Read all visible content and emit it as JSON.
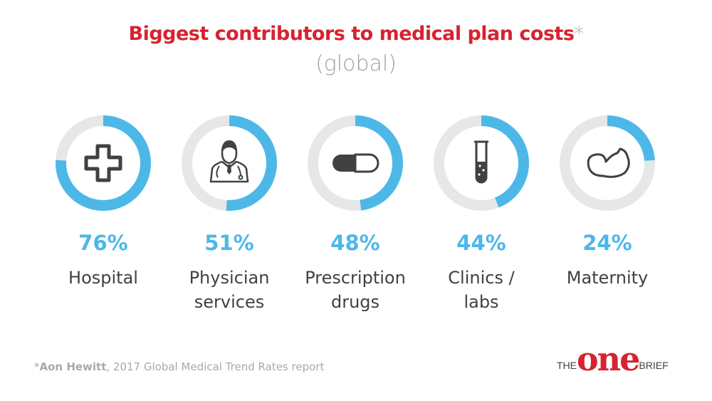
{
  "title": "Biggest contributors to medical plan costs",
  "title_asterisk": "*",
  "subtitle": "(global)",
  "chart_data": {
    "type": "donut",
    "ylim": [
      0,
      100
    ],
    "colors": {
      "filled": "#4db8e8",
      "track": "#e6e7e8",
      "title": "#d7232f"
    },
    "items": [
      {
        "value": 76,
        "label": "76%",
        "name_lines": [
          "Hospital"
        ],
        "icon": "medical-cross-icon"
      },
      {
        "value": 51,
        "label": "51%",
        "name_lines": [
          "Physician",
          "services"
        ],
        "icon": "doctor-icon"
      },
      {
        "value": 48,
        "label": "48%",
        "name_lines": [
          "Prescription",
          "drugs"
        ],
        "icon": "pill-capsule-icon"
      },
      {
        "value": 44,
        "label": "44%",
        "name_lines": [
          "Clinics /",
          "labs"
        ],
        "icon": "test-tube-icon"
      },
      {
        "value": 24,
        "label": "24%",
        "name_lines": [
          "Maternity"
        ],
        "icon": "fetus-icon"
      }
    ]
  },
  "footnote": {
    "asterisk": "*",
    "source": "Aon Hewitt",
    "rest": ", 2017 Global Medical Trend Rates report"
  },
  "logo": {
    "the": "THE",
    "one": "one",
    "brief": "BRIEF"
  }
}
